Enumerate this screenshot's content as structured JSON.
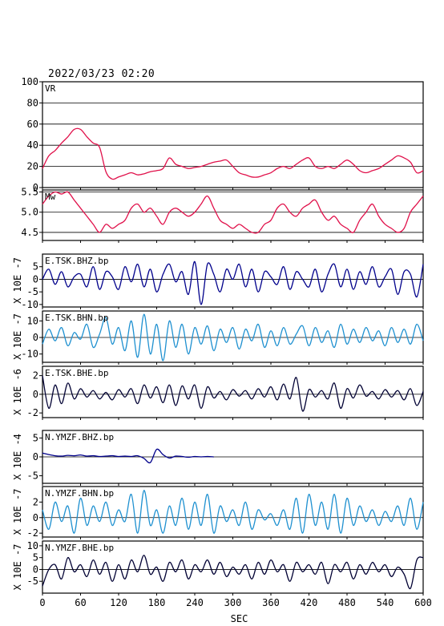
{
  "header": {
    "title": "2022/03/23 02:20"
  },
  "colors": {
    "vr": "#e0104a",
    "mw": "#e0104a",
    "z": "#00008b",
    "n": "#1e90d0",
    "e": "#000033",
    "axis": "#000000"
  },
  "chart_data": {
    "type": "line",
    "title": "2022/03/23 02:20",
    "xlabel": "SEC",
    "xlim": [
      0,
      600
    ],
    "xticks": [
      0,
      60,
      120,
      180,
      240,
      300,
      360,
      420,
      480,
      540,
      600
    ],
    "panels": [
      {
        "id": "vr",
        "name": "VR",
        "ylabel": "",
        "ylim": [
          0,
          100
        ],
        "yticks": [
          0,
          20,
          40,
          60,
          80,
          100
        ],
        "grid": true,
        "color_key": "vr",
        "x": [
          0,
          10,
          20,
          30,
          40,
          50,
          60,
          70,
          80,
          90,
          100,
          110,
          120,
          130,
          140,
          150,
          160,
          170,
          180,
          190,
          200,
          210,
          220,
          230,
          240,
          250,
          260,
          270,
          280,
          290,
          300,
          310,
          320,
          330,
          340,
          350,
          360,
          370,
          380,
          390,
          400,
          410,
          420,
          430,
          440,
          450,
          460,
          470,
          480,
          490,
          500,
          510,
          520,
          530,
          540,
          550,
          560,
          570,
          580,
          590,
          600
        ],
        "values": [
          18,
          30,
          35,
          42,
          48,
          55,
          55,
          48,
          42,
          38,
          15,
          8,
          10,
          12,
          14,
          12,
          13,
          15,
          16,
          18,
          28,
          22,
          20,
          18,
          19,
          20,
          22,
          24,
          25,
          26,
          20,
          14,
          12,
          10,
          10,
          12,
          14,
          18,
          20,
          18,
          22,
          26,
          28,
          20,
          18,
          20,
          18,
          22,
          26,
          22,
          16,
          14,
          16,
          18,
          22,
          26,
          30,
          28,
          24,
          14,
          16
        ]
      },
      {
        "id": "mw",
        "name": "Mw",
        "ylabel": "",
        "ylim": [
          4.3,
          5.55
        ],
        "yticks": [
          4.5,
          5.0,
          5.5
        ],
        "ytick_labels": [
          "4.5",
          "5.0",
          "5.5"
        ],
        "grid": true,
        "color_key": "mw",
        "x": [
          0,
          10,
          20,
          30,
          40,
          50,
          60,
          70,
          80,
          90,
          100,
          110,
          120,
          130,
          140,
          150,
          160,
          170,
          180,
          190,
          200,
          210,
          220,
          230,
          240,
          250,
          260,
          270,
          280,
          290,
          300,
          310,
          320,
          330,
          340,
          350,
          360,
          370,
          380,
          390,
          400,
          410,
          420,
          430,
          440,
          450,
          460,
          470,
          480,
          490,
          500,
          510,
          520,
          530,
          540,
          550,
          560,
          570,
          580,
          590,
          600
        ],
        "values": [
          5.2,
          5.4,
          5.5,
          5.45,
          5.5,
          5.3,
          5.1,
          4.9,
          4.7,
          4.5,
          4.7,
          4.6,
          4.7,
          4.8,
          5.1,
          5.2,
          5.0,
          5.1,
          4.9,
          4.7,
          5.0,
          5.1,
          5.0,
          4.9,
          5.0,
          5.2,
          5.4,
          5.1,
          4.8,
          4.7,
          4.6,
          4.7,
          4.6,
          4.5,
          4.5,
          4.7,
          4.8,
          5.1,
          5.2,
          5.0,
          4.9,
          5.1,
          5.2,
          5.3,
          5.0,
          4.8,
          4.9,
          4.7,
          4.6,
          4.5,
          4.8,
          5.0,
          5.2,
          4.9,
          4.7,
          4.6,
          4.5,
          4.6,
          5.0,
          5.2,
          5.4
        ]
      },
      {
        "id": "z1",
        "name": "E.TSK.BHZ.bp",
        "ylabel": "X 10E -7",
        "ylim": [
          -11,
          10
        ],
        "yticks": [
          -10,
          -5,
          0,
          5
        ],
        "grid": false,
        "color_key": "z",
        "x": [
          0,
          10,
          20,
          30,
          40,
          50,
          60,
          70,
          80,
          90,
          100,
          110,
          120,
          130,
          140,
          150,
          160,
          170,
          180,
          190,
          200,
          210,
          220,
          230,
          240,
          250,
          260,
          270,
          280,
          290,
          300,
          310,
          320,
          330,
          340,
          350,
          360,
          370,
          380,
          390,
          400,
          410,
          420,
          430,
          440,
          450,
          460,
          470,
          480,
          490,
          500,
          510,
          520,
          530,
          540,
          550,
          560,
          570,
          580,
          590,
          600
        ],
        "values": [
          0,
          4,
          -2,
          3,
          -3,
          1,
          2,
          -3,
          5,
          -4,
          3,
          1,
          -4,
          5,
          -1,
          6,
          -3,
          4,
          -5,
          2,
          6,
          -1,
          3,
          -6,
          7,
          -10,
          6,
          2,
          -5,
          4,
          0,
          6,
          -3,
          4,
          -5,
          3,
          1,
          -2,
          5,
          -4,
          3,
          0,
          -3,
          4,
          -5,
          2,
          6,
          -3,
          4,
          -4,
          3,
          -2,
          5,
          -3,
          1,
          4,
          -6,
          3,
          2,
          -7,
          6
        ]
      },
      {
        "id": "n1",
        "name": "E.TSK.BHN.bp",
        "ylabel": "X 10E -7",
        "ylim": [
          -15,
          16
        ],
        "yticks": [
          -10,
          0,
          10
        ],
        "grid": false,
        "color_key": "n",
        "x": [
          0,
          10,
          20,
          30,
          40,
          50,
          60,
          70,
          80,
          90,
          100,
          110,
          120,
          130,
          140,
          150,
          160,
          170,
          180,
          190,
          200,
          210,
          220,
          230,
          240,
          250,
          260,
          270,
          280,
          290,
          300,
          310,
          320,
          330,
          340,
          350,
          360,
          370,
          380,
          390,
          400,
          410,
          420,
          430,
          440,
          450,
          460,
          470,
          480,
          490,
          500,
          510,
          520,
          530,
          540,
          550,
          560,
          570,
          580,
          590,
          600
        ],
        "values": [
          -4,
          5,
          -2,
          6,
          -5,
          3,
          -1,
          8,
          -6,
          2,
          12,
          -4,
          6,
          -8,
          10,
          -12,
          14,
          -10,
          8,
          -14,
          10,
          -6,
          8,
          -10,
          6,
          -4,
          7,
          -8,
          5,
          -3,
          6,
          -7,
          5,
          -2,
          8,
          -6,
          4,
          -5,
          6,
          -4,
          2,
          7,
          -5,
          6,
          -3,
          4,
          -6,
          8,
          -4,
          5,
          -3,
          6,
          -2,
          4,
          -5,
          6,
          -3,
          5,
          -4,
          8,
          -2
        ]
      },
      {
        "id": "e1",
        "name": "E.TSK.BHE.bp",
        "ylabel": "X 10E -6",
        "ylim": [
          -2.5,
          3
        ],
        "yticks": [
          -2,
          0,
          2
        ],
        "grid": false,
        "color_key": "e",
        "x": [
          0,
          10,
          20,
          30,
          40,
          50,
          60,
          70,
          80,
          90,
          100,
          110,
          120,
          130,
          140,
          150,
          160,
          170,
          180,
          190,
          200,
          210,
          220,
          230,
          240,
          250,
          260,
          270,
          280,
          290,
          300,
          310,
          320,
          330,
          340,
          350,
          360,
          370,
          380,
          390,
          400,
          410,
          420,
          430,
          440,
          450,
          460,
          470,
          480,
          490,
          500,
          510,
          520,
          530,
          540,
          550,
          560,
          570,
          580,
          590,
          600
        ],
        "values": [
          2,
          -1.5,
          1,
          -1,
          1.2,
          -0.5,
          0.6,
          -0.3,
          0.4,
          -0.5,
          0.2,
          -0.6,
          0.5,
          -0.3,
          0.6,
          -1,
          1,
          -0.4,
          0.8,
          -0.9,
          1,
          -1.2,
          0.9,
          -0.5,
          1,
          -1.5,
          0.8,
          -0.4,
          0.3,
          -0.6,
          0.5,
          -0.2,
          0.4,
          -0.5,
          0.6,
          -0.3,
          0.8,
          -0.6,
          1.1,
          -0.5,
          1.8,
          -1.8,
          0.5,
          -0.3,
          0.4,
          -0.5,
          1.2,
          -1.5,
          0.6,
          -0.4,
          1,
          -0.2,
          0.3,
          -0.5,
          0.5,
          -0.3,
          0.4,
          -0.6,
          0.6,
          -1.2,
          0.3
        ]
      },
      {
        "id": "z2",
        "name": "N.YMZF.BHZ.bp",
        "ylabel": "X 10E -4",
        "ylim": [
          -7,
          7
        ],
        "yticks": [
          -5,
          0,
          5
        ],
        "grid": false,
        "color_key": "z",
        "x": [
          0,
          10,
          20,
          30,
          40,
          50,
          60,
          70,
          80,
          90,
          100,
          110,
          120,
          130,
          140,
          150,
          160,
          170,
          180,
          190,
          200,
          210,
          220,
          230,
          240,
          250,
          260,
          270
        ],
        "values": [
          1,
          0.6,
          0.3,
          0.2,
          0.4,
          0.3,
          0.5,
          0.2,
          0.3,
          0.1,
          0.2,
          0.3,
          0.1,
          0.2,
          0.1,
          0.3,
          -0.4,
          -1.5,
          2,
          0.6,
          -0.3,
          0.2,
          0.1,
          -0.1,
          0.1,
          0,
          0.1,
          0
        ]
      },
      {
        "id": "n2",
        "name": "N.YMZF.BHN.bp",
        "ylabel": "X 10E -7",
        "ylim": [
          -2.5,
          4
        ],
        "yticks": [
          -2,
          0,
          2
        ],
        "grid": false,
        "color_key": "n",
        "x": [
          0,
          10,
          20,
          30,
          40,
          50,
          60,
          70,
          80,
          90,
          100,
          110,
          120,
          130,
          140,
          150,
          160,
          170,
          180,
          190,
          200,
          210,
          220,
          230,
          240,
          250,
          260,
          270,
          280,
          290,
          300,
          310,
          320,
          330,
          340,
          350,
          360,
          370,
          380,
          390,
          400,
          410,
          420,
          430,
          440,
          450,
          460,
          470,
          480,
          490,
          500,
          510,
          520,
          530,
          540,
          550,
          560,
          570,
          580,
          590,
          600
        ],
        "values": [
          1,
          -1.5,
          2,
          -0.5,
          1.5,
          -2,
          2.5,
          -1,
          1.5,
          -0.5,
          2,
          -1,
          1,
          -0.5,
          3,
          -2,
          3.5,
          -1,
          1,
          -2,
          1.5,
          -1,
          2.5,
          -1.5,
          2,
          -1,
          3,
          -2,
          1.5,
          -0.5,
          1,
          -1,
          2,
          -1.5,
          1,
          -0.3,
          0.5,
          -1,
          1,
          -1.5,
          2.5,
          -2,
          3,
          -1,
          2,
          -1.5,
          3,
          -2,
          2.5,
          -1,
          1.5,
          -0.5,
          1,
          -1,
          0.8,
          -0.5,
          1.5,
          -1,
          2.5,
          -1.5,
          2
        ]
      },
      {
        "id": "e2",
        "name": "N.YMZF.BHE.bp",
        "ylabel": "X 10E -7",
        "ylim": [
          -10,
          12
        ],
        "yticks": [
          -5,
          0,
          5,
          10
        ],
        "grid": false,
        "color_key": "e",
        "x": [
          0,
          10,
          20,
          30,
          40,
          50,
          60,
          70,
          80,
          90,
          100,
          110,
          120,
          130,
          140,
          150,
          160,
          170,
          180,
          190,
          200,
          210,
          220,
          230,
          240,
          250,
          260,
          270,
          280,
          290,
          300,
          310,
          320,
          330,
          340,
          350,
          360,
          370,
          380,
          390,
          400,
          410,
          420,
          430,
          440,
          450,
          460,
          470,
          480,
          490,
          500,
          510,
          520,
          530,
          540,
          550,
          560,
          570,
          580,
          590,
          600
        ],
        "values": [
          -7,
          0,
          2,
          -4,
          5,
          -1,
          2,
          -3,
          4,
          -2,
          3,
          -5,
          2,
          -4,
          4,
          -1,
          6,
          -2,
          1,
          -5,
          3,
          -1,
          4,
          -4,
          2,
          -1,
          4,
          -2,
          3,
          -3,
          1,
          -2,
          2,
          -4,
          3,
          -2,
          4,
          -1,
          2,
          -5,
          3,
          -1,
          2,
          -2,
          3,
          -6,
          2,
          -1,
          3,
          -4,
          2,
          -2,
          3,
          -1,
          2,
          -3,
          1,
          -2,
          -8,
          4,
          5
        ]
      }
    ]
  }
}
